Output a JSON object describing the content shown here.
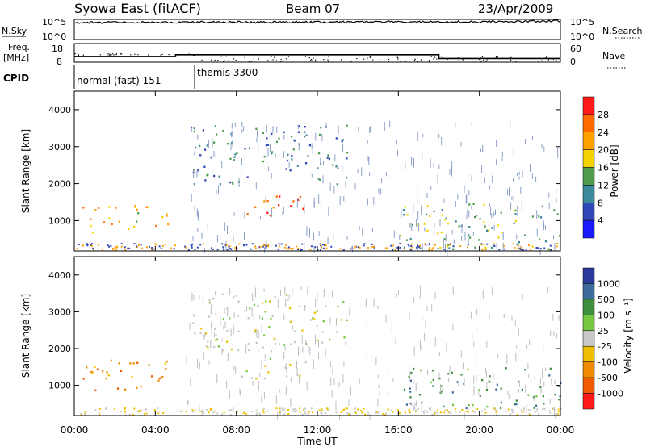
{
  "header": {
    "station": "Syowa East (fitACF)",
    "beam": "Beam 07",
    "date": "23/Apr/2009"
  },
  "noise_panel": {
    "left_label": "N.Sky",
    "right_label": "N.Search",
    "tick_top": "10^5",
    "tick_bottom": "10^0"
  },
  "freq_panel": {
    "left_label_1": "Freq.",
    "left_label_2": "[MHz]",
    "left_ticks": [
      "18",
      "8"
    ],
    "right_ticks": [
      "60",
      "0"
    ],
    "right_label": "Nave"
  },
  "cpid": {
    "label": "CPID",
    "modes": [
      {
        "name": "normal (fast) 151",
        "start_hour": 0,
        "end_hour": 6
      },
      {
        "name": "themis 3300",
        "start_hour": 6,
        "end_hour": 24
      }
    ]
  },
  "power_scale": {
    "label": "Power [dB]",
    "ticks": [
      "28",
      "24",
      "20",
      "16",
      "12",
      "8",
      "4"
    ],
    "colors": [
      "#ff1a1a",
      "#ff6a00",
      "#ff9f00",
      "#f2d200",
      "#4e9b4e",
      "#3c8a9c",
      "#3048b8",
      "#1a1aff"
    ]
  },
  "velocity_scale": {
    "label": "Velocity [m s⁻¹]",
    "ticks": [
      "1000",
      "500",
      "100",
      "25",
      "-25",
      "-100",
      "-500",
      "-1000"
    ],
    "colors": [
      "#2a3a9a",
      "#3c6c9c",
      "#3e8c3e",
      "#76c642",
      "#c8c8c8",
      "#f0c000",
      "#f08a00",
      "#f05a00",
      "#ff1a1a"
    ]
  },
  "chart_data": [
    {
      "type": "line",
      "title": "Syowa East (fitACF) Beam 07 23/Apr/2009",
      "panel": "noise",
      "series": [
        {
          "name": "N.Sky",
          "x": [
            0,
            4,
            8,
            12,
            16,
            20,
            24
          ],
          "values": [
            4.2,
            4.3,
            4.3,
            4.3,
            4.4,
            4.4,
            4.6
          ]
        }
      ]
    },
    {
      "type": "line",
      "panel": "frequency",
      "series": [
        {
          "name": "Freq.",
          "x": [
            0,
            5,
            5,
            18,
            18,
            24
          ],
          "values": [
            11,
            11,
            12,
            12,
            10,
            10
          ]
        }
      ]
    },
    {
      "type": "heatmap",
      "panel": "power",
      "xlabel": "Time UT",
      "ylabel": "Slant Range [km]",
      "xlim": [
        0,
        24
      ],
      "ylim": [
        180,
        4500
      ],
      "x_ticks": [
        "00:00",
        "04:00",
        "08:00",
        "12:00",
        "16:00",
        "20:00",
        "00:00"
      ],
      "y_ticks": [
        1000,
        2000,
        3000,
        4000
      ],
      "colorbar": "Power [dB]",
      "regions": [
        {
          "t0": 0.3,
          "t1": 4.6,
          "r0": 700,
          "r1": 1500,
          "level": 18
        },
        {
          "t0": 5.7,
          "t1": 13.5,
          "r0": 2000,
          "r1": 3600,
          "level": 8
        },
        {
          "t0": 8.0,
          "t1": 11.5,
          "r0": 1150,
          "r1": 1750,
          "level": 24
        },
        {
          "t0": 16.0,
          "t1": 24.0,
          "r0": 250,
          "r1": 1500,
          "level": 12
        }
      ]
    },
    {
      "type": "heatmap",
      "panel": "velocity",
      "xlabel": "Time UT",
      "ylabel": "Slant Range [km]",
      "xlim": [
        0,
        24
      ],
      "ylim": [
        180,
        4500
      ],
      "x_ticks": [
        "00:00",
        "04:00",
        "08:00",
        "12:00",
        "16:00",
        "20:00",
        "00:00"
      ],
      "y_ticks": [
        1000,
        2000,
        3000,
        4000
      ],
      "colorbar": "Velocity [m s⁻¹]",
      "regions": [
        {
          "t0": 0.3,
          "t1": 4.6,
          "r0": 800,
          "r1": 1700,
          "level": -500
        },
        {
          "t0": 5.7,
          "t1": 13.5,
          "r0": 1900,
          "r1": 3500,
          "level": 0
        },
        {
          "t0": 8.0,
          "t1": 11.5,
          "r0": 1200,
          "r1": 1750,
          "level": 0
        },
        {
          "t0": 16.0,
          "t1": 24.0,
          "r0": 400,
          "r1": 1500,
          "level": 500
        }
      ]
    }
  ],
  "axes": {
    "x_title": "Time UT",
    "x_ticks": [
      "00:00",
      "04:00",
      "08:00",
      "12:00",
      "16:00",
      "20:00",
      "00:00"
    ],
    "y_title": "Slant Range [km]",
    "y_ticks": [
      "1000",
      "2000",
      "3000",
      "4000"
    ]
  }
}
